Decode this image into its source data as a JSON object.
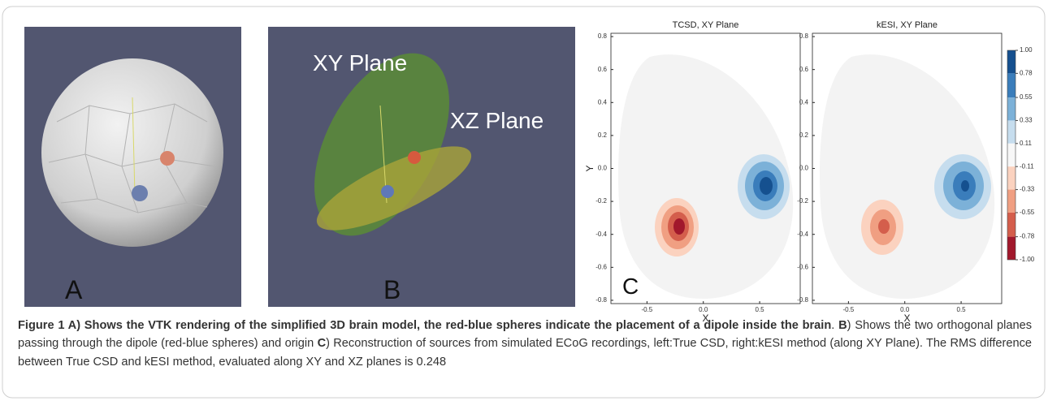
{
  "panels": [
    {
      "label": "A"
    },
    {
      "label": "B",
      "annotations": [
        "XY Plane",
        "XZ Plane"
      ]
    },
    {
      "label": "C",
      "plots": [
        {
          "title": "TCSD, XY Plane",
          "xlabel": "X",
          "ylabel": "Y"
        },
        {
          "title": "kESI, XY Plane",
          "xlabel": "X"
        }
      ],
      "xlim": [
        -0.82,
        0.86
      ],
      "ylim": [
        -0.82,
        0.82
      ],
      "xticks": [
        -0.5,
        {
          "value": 0,
          "label": "0.0"
        },
        0.5
      ],
      "yticks": [
        0.8,
        0.6,
        0.4,
        0.2,
        {
          "value": 0,
          "label": "0.0"
        },
        -0.2,
        -0.4,
        -0.6,
        -0.8
      ],
      "colorbar": {
        "ticks": [
          {
            "value": 1,
            "label": "1.00"
          },
          0.78,
          0.55,
          0.33,
          0.11,
          -0.11,
          -0.33,
          -0.55,
          -0.78,
          {
            "value": -1,
            "label": "-1.00"
          }
        ],
        "colors": [
          "#15508f",
          "#3a7dbb",
          "#7cb1d8",
          "#c6ddee",
          "#f7f7f7",
          "#fbd2bf",
          "#f09f82",
          "#d45e4c",
          "#a1182c"
        ]
      }
    }
  ],
  "caption": [
    {
      "text": "Figure 1 A) Shows the VTK rendering of the simplified 3D brain model, the red-blue spheres indicate the placement of a dipole inside the brain",
      "bold": true
    },
    {
      "text": ". ",
      "bold": false
    },
    {
      "text": "B",
      "bold": true
    },
    {
      "text": ") Shows the two orthogonal planes passing through the dipole (red-blue spheres) and origin ",
      "bold": false
    },
    {
      "text": "C",
      "bold": true
    },
    {
      "text": ") Reconstruction of sources from simulated ECoG recordings, left:True CSD, right:kESI method (along XY Plane). The RMS difference between True CSD and kESI method, evaluated along XY and XZ planes is 0.248",
      "bold": false
    }
  ]
}
